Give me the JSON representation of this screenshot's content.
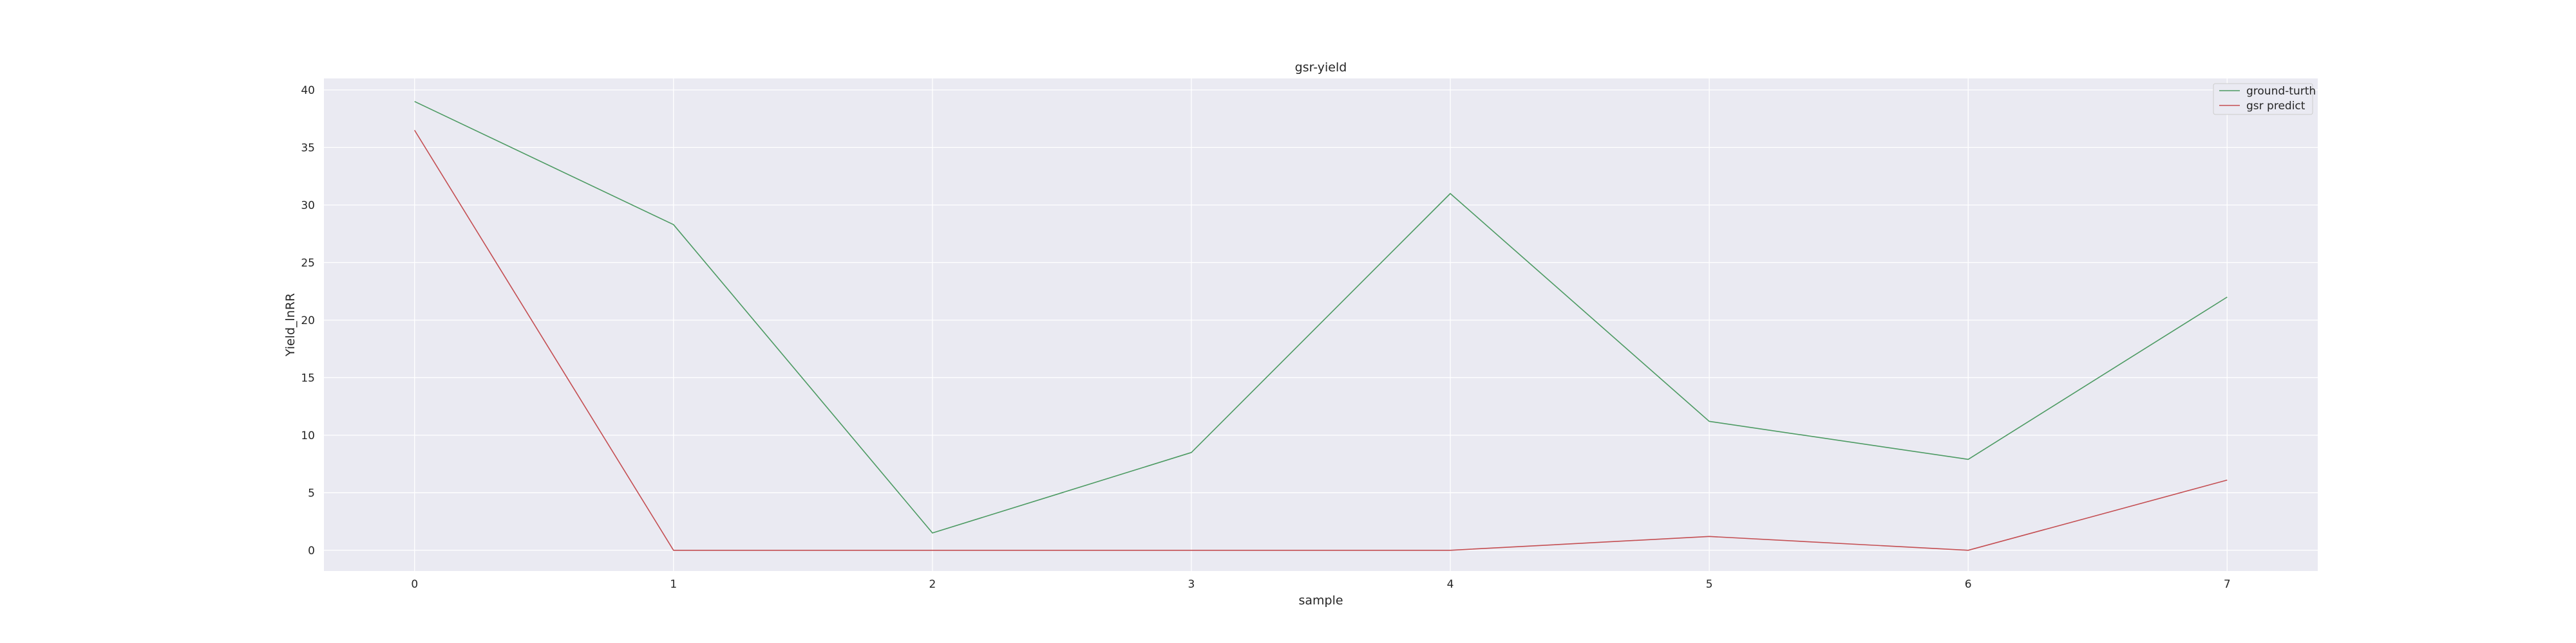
{
  "chart_data": {
    "type": "line",
    "title": "gsr-yield",
    "xlabel": "sample",
    "ylabel": "Yield_lnRR",
    "x": [
      0,
      1,
      2,
      3,
      4,
      5,
      6,
      7
    ],
    "xticks": [
      "0",
      "1",
      "2",
      "3",
      "4",
      "5",
      "6",
      "7"
    ],
    "yticks": [
      "0",
      "5",
      "10",
      "15",
      "20",
      "25",
      "30",
      "35",
      "40"
    ],
    "xlim": [
      -0.35,
      7.35
    ],
    "ylim": [
      -1.8,
      41.0
    ],
    "grid": true,
    "legend_position": "top-right",
    "background": "#eaeaf2",
    "series": [
      {
        "name": "ground-turth",
        "color": "#4c9a62",
        "values": [
          39.0,
          28.3,
          1.5,
          8.5,
          31.0,
          11.2,
          7.9,
          22.0
        ]
      },
      {
        "name": "gsr predict",
        "color": "#c44e52",
        "values": [
          36.5,
          0.0,
          0.0,
          0.0,
          0.0,
          1.2,
          0.0,
          6.1
        ]
      }
    ]
  }
}
